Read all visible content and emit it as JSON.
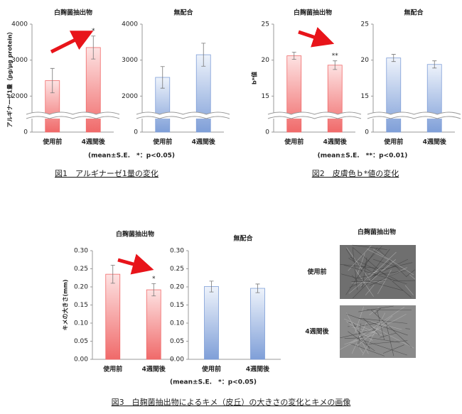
{
  "chart_data": [
    {
      "type": "bar",
      "title": "白麹菌抽出物",
      "ylabel": "アルギナーゼ1量（pg/μg protein）",
      "categories": [
        "使用前",
        "4週間後"
      ],
      "values": [
        2430,
        3350
      ],
      "errors": [
        340,
        320
      ],
      "annotations": [
        null,
        "*"
      ],
      "color": "#f06a6a",
      "ylim": [
        0,
        4000
      ],
      "ybreak": [
        0,
        1000
      ],
      "yticks": [
        0,
        2000,
        3000,
        4000
      ]
    },
    {
      "type": "bar",
      "title": "無配合",
      "categories": [
        "使用前",
        "4週間後"
      ],
      "values": [
        2520,
        3150
      ],
      "errors": [
        300,
        320
      ],
      "color": "#7f9fd8",
      "ylim": [
        0,
        4000
      ],
      "ybreak": [
        0,
        1000
      ],
      "yticks": [
        0,
        2000,
        3000,
        4000
      ]
    },
    {
      "type": "bar",
      "title": "白麹菌抽出物",
      "ylabel": "b*値",
      "categories": [
        "使用前",
        "4週間後"
      ],
      "values": [
        20.6,
        19.3
      ],
      "errors": [
        0.5,
        0.6
      ],
      "annotations": [
        null,
        "**"
      ],
      "color": "#f06a6a",
      "ylim": [
        0,
        25
      ],
      "ybreak": [
        0,
        10
      ],
      "yticks": [
        0,
        15,
        20,
        25
      ]
    },
    {
      "type": "bar",
      "title": "無配合",
      "categories": [
        "使用前",
        "4週間後"
      ],
      "values": [
        20.3,
        19.4
      ],
      "errors": [
        0.5,
        0.5
      ],
      "color": "#7f9fd8",
      "ylim": [
        0,
        25
      ],
      "ybreak": [
        0,
        10
      ],
      "yticks": [
        0,
        15,
        20,
        25
      ]
    },
    {
      "type": "bar",
      "title": "白麹菌抽出物",
      "ylabel": "キメの大きさ(mm)",
      "categories": [
        "使用前",
        "4週間後"
      ],
      "values": [
        0.235,
        0.192
      ],
      "errors": [
        0.025,
        0.017
      ],
      "annotations": [
        null,
        "*"
      ],
      "color": "#f06a6a",
      "ylim": [
        0,
        0.3
      ],
      "yticks": [
        {
          "value": 0,
          "label": "0.00"
        },
        {
          "value": 0.05,
          "label": "0.05"
        },
        {
          "value": 0.1,
          "label": "0.10"
        },
        {
          "value": 0.15,
          "label": "0.15"
        },
        {
          "value": 0.2,
          "label": "0.20"
        },
        {
          "value": 0.25,
          "label": "0.25"
        },
        {
          "value": 0.3,
          "label": "0.30"
        }
      ]
    },
    {
      "type": "bar",
      "title": "無配合",
      "categories": [
        "使用前",
        "4週間後"
      ],
      "values": [
        0.201,
        0.196
      ],
      "errors": [
        0.015,
        0.012
      ],
      "color": "#7f9fd8",
      "ylim": [
        0,
        0.3
      ],
      "yticks": [
        {
          "value": 0,
          "label": "0.00"
        },
        {
          "value": 0.05,
          "label": "0.05"
        },
        {
          "value": 0.1,
          "label": "0.10"
        },
        {
          "value": 0.15,
          "label": "0.15"
        },
        {
          "value": 0.2,
          "label": "0.20"
        },
        {
          "value": 0.25,
          "label": "0.25"
        },
        {
          "value": 0.3,
          "label": "0.30"
        }
      ]
    }
  ],
  "figures": [
    {
      "note": "(mean±S.E.　*：p<0.05)",
      "caption": "図1　アルギナーゼ1量の変化"
    },
    {
      "note": "(mean±S.E.　**：p<0.01)",
      "caption": "図2　皮膚色ｂ*値の変化"
    },
    {
      "note": "(mean±S.E.　*：p<0.05)",
      "caption": "図3　白麹菌抽出物によるキメ（皮丘）の大きさの変化とキメの画像"
    }
  ],
  "image_panel": {
    "title": "白麹菌抽出物",
    "rows": [
      "使用前",
      "4週間後"
    ]
  }
}
